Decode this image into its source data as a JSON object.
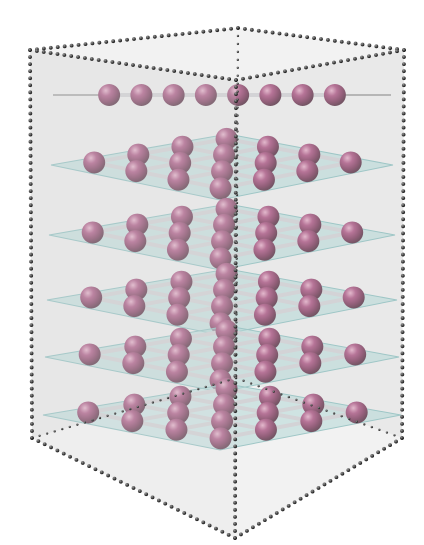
{
  "figure": {
    "subject": "stacked-atomic-layers-in-box",
    "layer_count": 6,
    "colors": {
      "background": "#ffffff",
      "box_fill": "#d9d9d9",
      "box_edge_dots": "#1f1f1f",
      "plane_fill": "#9fd6d4",
      "plane_edge": "#7fbcbc",
      "bond": "#cfcfd4",
      "atom_base": "#7a2450",
      "atom_highlight": "#d98ab0",
      "atom_shadow": "#3f0f27"
    }
  }
}
